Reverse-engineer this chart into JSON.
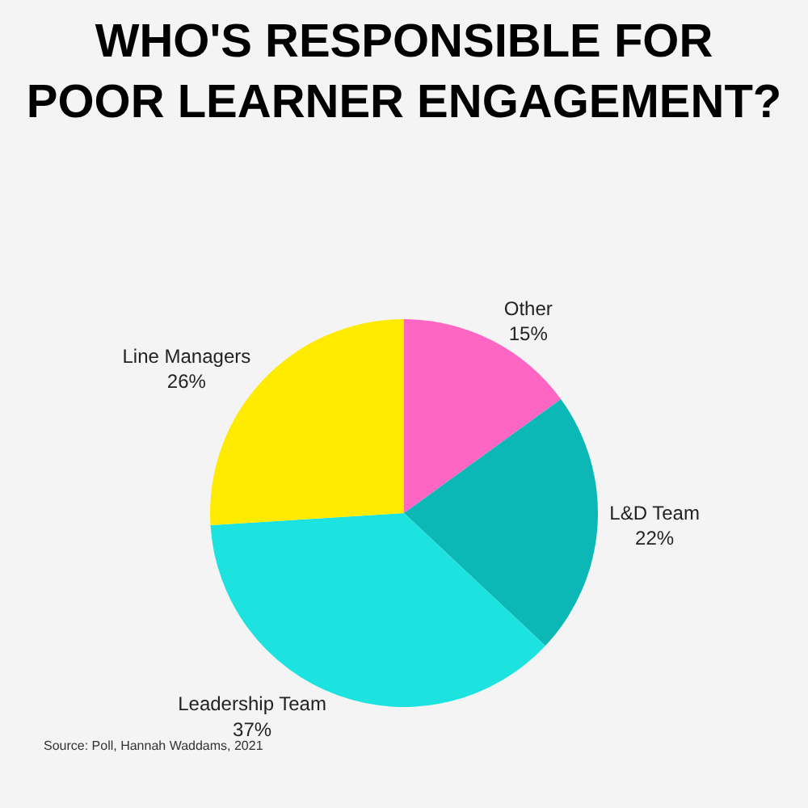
{
  "chart_data": {
    "type": "pie",
    "title": "WHO'S RESPONSIBLE FOR POOR LEARNER ENGAGEMENT?",
    "categories": [
      "Other",
      "L&D Team",
      "Leadership Team",
      "Line Managers"
    ],
    "values": [
      15,
      22,
      37,
      26
    ],
    "value_labels": [
      "15%",
      "22%",
      "37%",
      "26%"
    ],
    "colors": [
      "#ff66c4",
      "#0cb8b6",
      "#1de3e0",
      "#ffeb00"
    ],
    "annotations": [
      "Source: Poll, Hannah Waddams, 2021"
    ],
    "legend": false
  }
}
